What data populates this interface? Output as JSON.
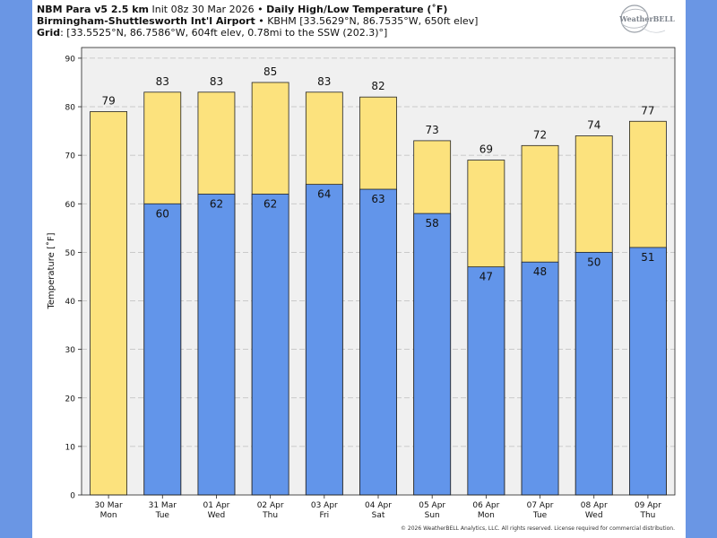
{
  "header": {
    "model": "NBM Para v5 2.5 km",
    "init": "Init 08z 30 Mar 2026",
    "bullet": "•",
    "product": "Daily High/Low Temperature (˚F)",
    "station_name": "Birmingham-Shuttlesworth Int'l Airport",
    "station_info": "KBHM [33.5629°N, 86.7535°W, 650ft elev]",
    "grid_label": "Grid",
    "grid_info": ": [33.5525°N, 86.7586°W, 604ft elev, 0.78mi to the SSW (202.3)°]"
  },
  "logo": {
    "text": "WeatherBELL"
  },
  "footer": {
    "text": "© 2026 WeatherBELL Analytics, LLC. All rights reserved. License required for commercial distribution."
  },
  "colors": {
    "high": "#fce27d",
    "low": "#6295ea",
    "background": "#6a96e4",
    "plot_bg": "#f0f0f0"
  },
  "chart_data": {
    "type": "bar",
    "title": "Daily High/Low Temperature (˚F)",
    "xlabel": "",
    "ylabel": "Temperature [˚F]",
    "ylim": [
      0,
      90
    ],
    "yticks": [
      0,
      10,
      20,
      30,
      40,
      50,
      60,
      70,
      80,
      90
    ],
    "grid": true,
    "categories": [
      {
        "date": "30 Mar",
        "day": "Mon"
      },
      {
        "date": "31 Mar",
        "day": "Tue"
      },
      {
        "date": "01 Apr",
        "day": "Wed"
      },
      {
        "date": "02 Apr",
        "day": "Thu"
      },
      {
        "date": "03 Apr",
        "day": "Fri"
      },
      {
        "date": "04 Apr",
        "day": "Sat"
      },
      {
        "date": "05 Apr",
        "day": "Sun"
      },
      {
        "date": "06 Apr",
        "day": "Mon"
      },
      {
        "date": "07 Apr",
        "day": "Tue"
      },
      {
        "date": "08 Apr",
        "day": "Wed"
      },
      {
        "date": "09 Apr",
        "day": "Thu"
      }
    ],
    "series": [
      {
        "name": "High",
        "values": [
          79,
          83,
          83,
          85,
          83,
          82,
          73,
          69,
          72,
          74,
          77
        ]
      },
      {
        "name": "Low",
        "values": [
          null,
          60,
          62,
          62,
          64,
          63,
          58,
          47,
          48,
          50,
          51
        ]
      }
    ]
  }
}
